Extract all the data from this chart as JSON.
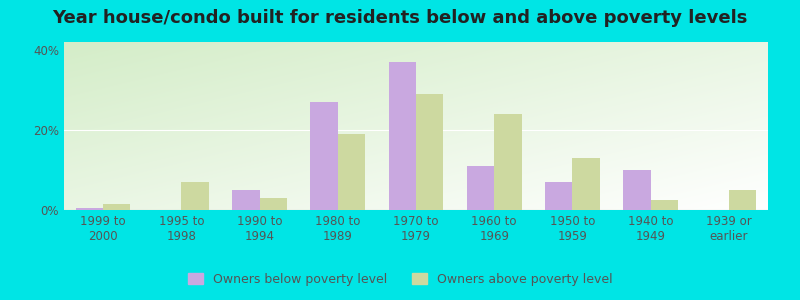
{
  "title": "Year house/condo built for residents below and above poverty levels",
  "categories": [
    "1999 to\n2000",
    "1995 to\n1998",
    "1990 to\n1994",
    "1980 to\n1989",
    "1970 to\n1979",
    "1960 to\n1969",
    "1950 to\n1959",
    "1940 to\n1949",
    "1939 or\nearlier"
  ],
  "below_poverty": [
    0.5,
    0.0,
    5.0,
    27.0,
    37.0,
    11.0,
    7.0,
    10.0,
    0.0
  ],
  "above_poverty": [
    1.5,
    7.0,
    3.0,
    19.0,
    29.0,
    24.0,
    13.0,
    2.5,
    5.0
  ],
  "below_color": "#c9a8e0",
  "above_color": "#cdd9a0",
  "ylim": [
    0,
    42
  ],
  "yticks": [
    0,
    20,
    40
  ],
  "ytick_labels": [
    "0%",
    "20%",
    "40%"
  ],
  "outer_bg": "#00e5e5",
  "legend_below": "Owners below poverty level",
  "legend_above": "Owners above poverty level",
  "bar_width": 0.35,
  "title_fontsize": 13,
  "tick_fontsize": 8.5
}
